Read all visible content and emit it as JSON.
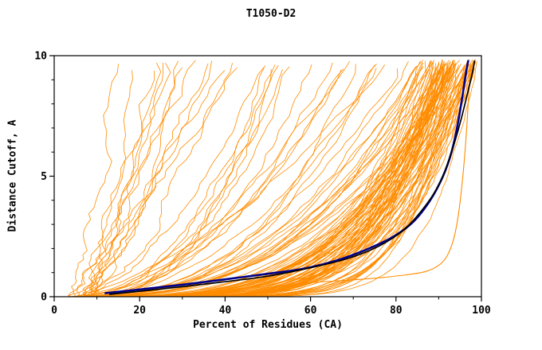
{
  "chart_data": {
    "type": "line",
    "title": "T1050-D2",
    "xlabel": "Percent of Residues (CA)",
    "ylabel": "Distance Cutoff, A",
    "xlim": [
      0,
      100
    ],
    "ylim": [
      0,
      10
    ],
    "xticks": [
      0,
      20,
      40,
      60,
      80,
      100
    ],
    "xminor_step": 10,
    "yticks": [
      0,
      5,
      10
    ],
    "yminor_step": 1,
    "colors": {
      "model": "#FF8C00",
      "best_model": "#00008B",
      "reference": "#000000",
      "axis": "#000000",
      "background": "#FFFFFF"
    },
    "legend": "none",
    "grid": "off",
    "description": "GDT-style plot: each curve shows percent of CA residues (x) under a distance cutoff in Angstroms (y); many orange model curves, one dark navy and one black highlighted curve",
    "highlight_series": [
      {
        "name": "outlier-model-curve",
        "color_key": "model",
        "width": 1.1,
        "points": [
          [
            57,
            0.55
          ],
          [
            63,
            0.62
          ],
          [
            70,
            0.7
          ],
          [
            77,
            0.8
          ],
          [
            83,
            0.92
          ],
          [
            87,
            1.05
          ],
          [
            90,
            1.3
          ],
          [
            92,
            1.7
          ],
          [
            93.5,
            2.4
          ],
          [
            94.6,
            3.4
          ],
          [
            95.6,
            4.9
          ],
          [
            96.4,
            6.6
          ],
          [
            97.0,
            8.3
          ],
          [
            97.4,
            9.6
          ]
        ]
      },
      {
        "name": "highlight-curve-navy",
        "color_key": "best_model",
        "width": 2.6,
        "points": [
          [
            12,
            0.15
          ],
          [
            20,
            0.3
          ],
          [
            30,
            0.5
          ],
          [
            40,
            0.72
          ],
          [
            50,
            0.95
          ],
          [
            58,
            1.15
          ],
          [
            66,
            1.5
          ],
          [
            73,
            1.95
          ],
          [
            79,
            2.45
          ],
          [
            84,
            3.1
          ],
          [
            88,
            4.0
          ],
          [
            91,
            5.0
          ],
          [
            93,
            6.0
          ],
          [
            94.5,
            7.2
          ],
          [
            95.7,
            8.5
          ],
          [
            96.5,
            9.4
          ],
          [
            96.9,
            9.78
          ]
        ]
      },
      {
        "name": "highlight-curve-black",
        "color_key": "reference",
        "width": 1.7,
        "points": [
          [
            13,
            0.1
          ],
          [
            25,
            0.32
          ],
          [
            38,
            0.58
          ],
          [
            50,
            0.85
          ],
          [
            60,
            1.2
          ],
          [
            69,
            1.6
          ],
          [
            76,
            2.1
          ],
          [
            82,
            2.8
          ],
          [
            87,
            3.8
          ],
          [
            90.5,
            4.8
          ],
          [
            93,
            6.0
          ],
          [
            95,
            7.2
          ],
          [
            96.7,
            8.4
          ],
          [
            97.9,
            9.3
          ],
          [
            98.4,
            9.78
          ]
        ]
      }
    ],
    "background_series": {
      "color_key": "model",
      "width": 0.8,
      "seed": 7,
      "groups": [
        {
          "name": "steep-left-models",
          "count": 14,
          "x_start": [
            3.5,
            9
          ],
          "x_end": [
            13,
            48
          ],
          "shape": [
            0.85,
            1.5
          ],
          "wiggle": 1.8,
          "y_top": [
            9.3,
            9.8
          ]
        },
        {
          "name": "mid-models",
          "count": 19,
          "x_start": [
            3,
            8
          ],
          "x_end": [
            50,
            86
          ],
          "shape": [
            1.5,
            3.0
          ],
          "wiggle": 1.3,
          "y_top": [
            9.4,
            9.8
          ]
        },
        {
          "name": "good-models",
          "count": 84,
          "x_start": [
            3,
            10
          ],
          "x_end": [
            86,
            100
          ],
          "shape": [
            2.2,
            7.0
          ],
          "wiggle": 0.9,
          "y_top": [
            9.45,
            9.85
          ]
        },
        {
          "name": "floor-hugging-models",
          "count": 8,
          "x_start": [
            8,
            22
          ],
          "x_end": [
            90,
            100
          ],
          "shape": [
            6.0,
            11.0
          ],
          "wiggle": 0.5,
          "y_top": [
            9.4,
            9.8
          ]
        }
      ]
    }
  }
}
